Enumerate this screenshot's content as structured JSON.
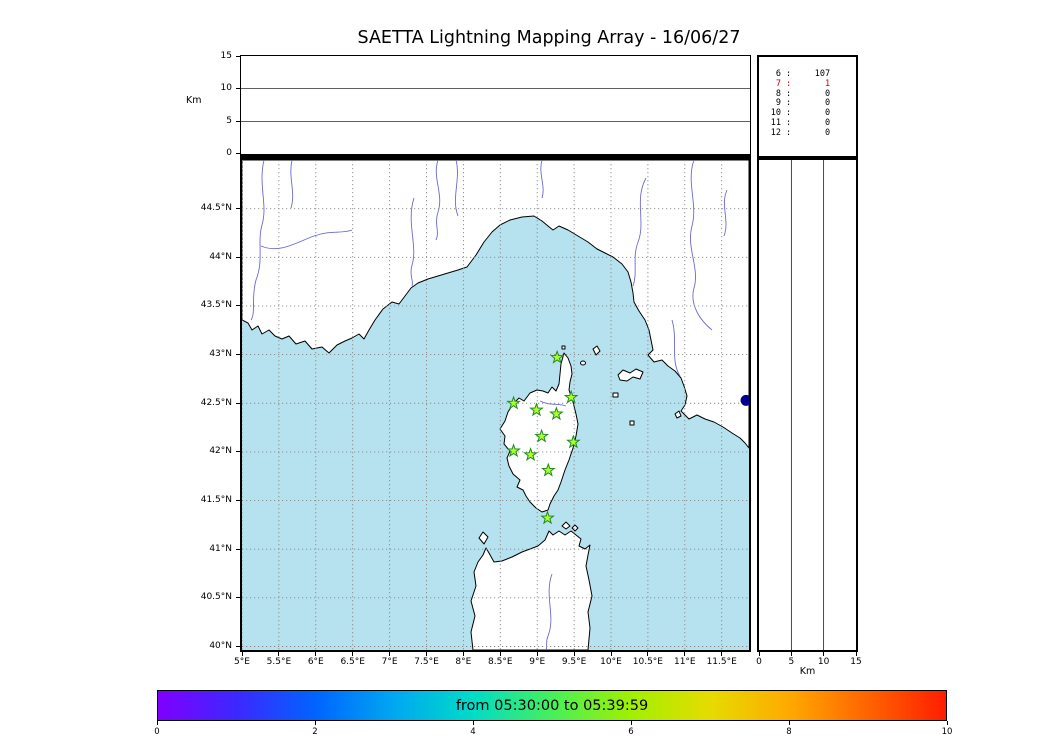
{
  "title": "SAETTA Lightning Mapping Array - 16/06/27",
  "labels": {
    "km_vertical": "Km",
    "km_horizontal": "Km"
  },
  "chart_data": {
    "type": "scatter",
    "title": "SAETTA Lightning Mapping Array - 16/06/27",
    "panels": {
      "altitude_top": {
        "ylabel": "Km",
        "ylim": [
          0,
          15
        ],
        "yticks": [
          {
            "label": "0",
            "value": 0
          },
          {
            "label": "5",
            "value": 5
          },
          {
            "label": "10",
            "value": 10
          },
          {
            "label": "15",
            "value": 15
          }
        ],
        "gridlines": [
          5,
          10
        ],
        "points": []
      },
      "station_count_table": {
        "rows": [
          {
            "stations": "6",
            "count": "107",
            "highlight": false
          },
          {
            "stations": "7",
            "count": "1",
            "highlight": true
          },
          {
            "stations": "8",
            "count": "0",
            "highlight": false
          },
          {
            "stations": "9",
            "count": "0",
            "highlight": false
          },
          {
            "stations": "10",
            "count": "0",
            "highlight": false
          },
          {
            "stations": "11",
            "count": "0",
            "highlight": false
          },
          {
            "stations": "12",
            "count": "0",
            "highlight": false
          }
        ],
        "highlight_color": "#d40000"
      },
      "map": {
        "lon_range": [
          5.0,
          11.87
        ],
        "lat_range": [
          39.96,
          45.0
        ],
        "grid": "dashed",
        "sea_color": "#b5e2ee",
        "land_color": "#ffffff",
        "lon_ticks": [
          {
            "label": "5°E",
            "value": 5
          },
          {
            "label": "5.5°E",
            "value": 5.5
          },
          {
            "label": "6°E",
            "value": 6
          },
          {
            "label": "6.5°E",
            "value": 6.5
          },
          {
            "label": "7°E",
            "value": 7
          },
          {
            "label": "7.5°E",
            "value": 7.5
          },
          {
            "label": "8°E",
            "value": 8
          },
          {
            "label": "8.5°E",
            "value": 8.5
          },
          {
            "label": "9°E",
            "value": 9
          },
          {
            "label": "9.5°E",
            "value": 9.5
          },
          {
            "label": "10°E",
            "value": 10
          },
          {
            "label": "10.5°E",
            "value": 10.5
          },
          {
            "label": "11°E",
            "value": 11
          },
          {
            "label": "11.5°E",
            "value": 11.5
          }
        ],
        "lat_ticks": [
          {
            "label": "40°N",
            "value": 40
          },
          {
            "label": "40.5°N",
            "value": 40.5
          },
          {
            "label": "41°N",
            "value": 41
          },
          {
            "label": "41.5°N",
            "value": 41.5
          },
          {
            "label": "42°N",
            "value": 42
          },
          {
            "label": "42.5°N",
            "value": 42.5
          },
          {
            "label": "43°N",
            "value": 43
          },
          {
            "label": "43.5°N",
            "value": 43.5
          },
          {
            "label": "44°N",
            "value": 44
          },
          {
            "label": "44.5°N",
            "value": 44.5
          }
        ],
        "stations": [
          {
            "lon": 9.27,
            "lat": 42.97
          },
          {
            "lon": 8.68,
            "lat": 42.5
          },
          {
            "lon": 8.99,
            "lat": 42.43
          },
          {
            "lon": 9.46,
            "lat": 42.56
          },
          {
            "lon": 9.26,
            "lat": 42.39
          },
          {
            "lon": 9.06,
            "lat": 42.16
          },
          {
            "lon": 9.49,
            "lat": 42.1
          },
          {
            "lon": 8.68,
            "lat": 42.01
          },
          {
            "lon": 8.91,
            "lat": 41.97
          },
          {
            "lon": 9.15,
            "lat": 41.81
          },
          {
            "lon": 9.14,
            "lat": 41.32
          }
        ],
        "station_marker": {
          "shape": "star",
          "fill": "#adff2f",
          "stroke": "#1f8a1f"
        },
        "sources": [
          {
            "lon": 11.83,
            "lat": 42.53,
            "color": "#00008b"
          }
        ]
      },
      "altitude_right": {
        "xlabel": "Km",
        "xlim": [
          0,
          15
        ],
        "xticks": [
          {
            "label": "0",
            "value": 0
          },
          {
            "label": "5",
            "value": 5
          },
          {
            "label": "10",
            "value": 10
          },
          {
            "label": "15",
            "value": 15
          }
        ],
        "gridlines": [
          5,
          10
        ],
        "points": []
      }
    },
    "colorbar": {
      "label": "from 05:30:00 to 05:39:59",
      "range": [
        0,
        10
      ],
      "ticks": [
        {
          "label": "0",
          "value": 0
        },
        {
          "label": "2",
          "value": 2
        },
        {
          "label": "4",
          "value": 4
        },
        {
          "label": "6",
          "value": 6
        },
        {
          "label": "8",
          "value": 8
        },
        {
          "label": "10",
          "value": 10
        }
      ],
      "gradient": [
        "#7f00ff",
        "#3c28ff",
        "#0064ff",
        "#00a8f0",
        "#00dcc8",
        "#46f05a",
        "#a0f000",
        "#e6dc00",
        "#ffaa00",
        "#ff6400",
        "#ff1e00"
      ]
    }
  }
}
